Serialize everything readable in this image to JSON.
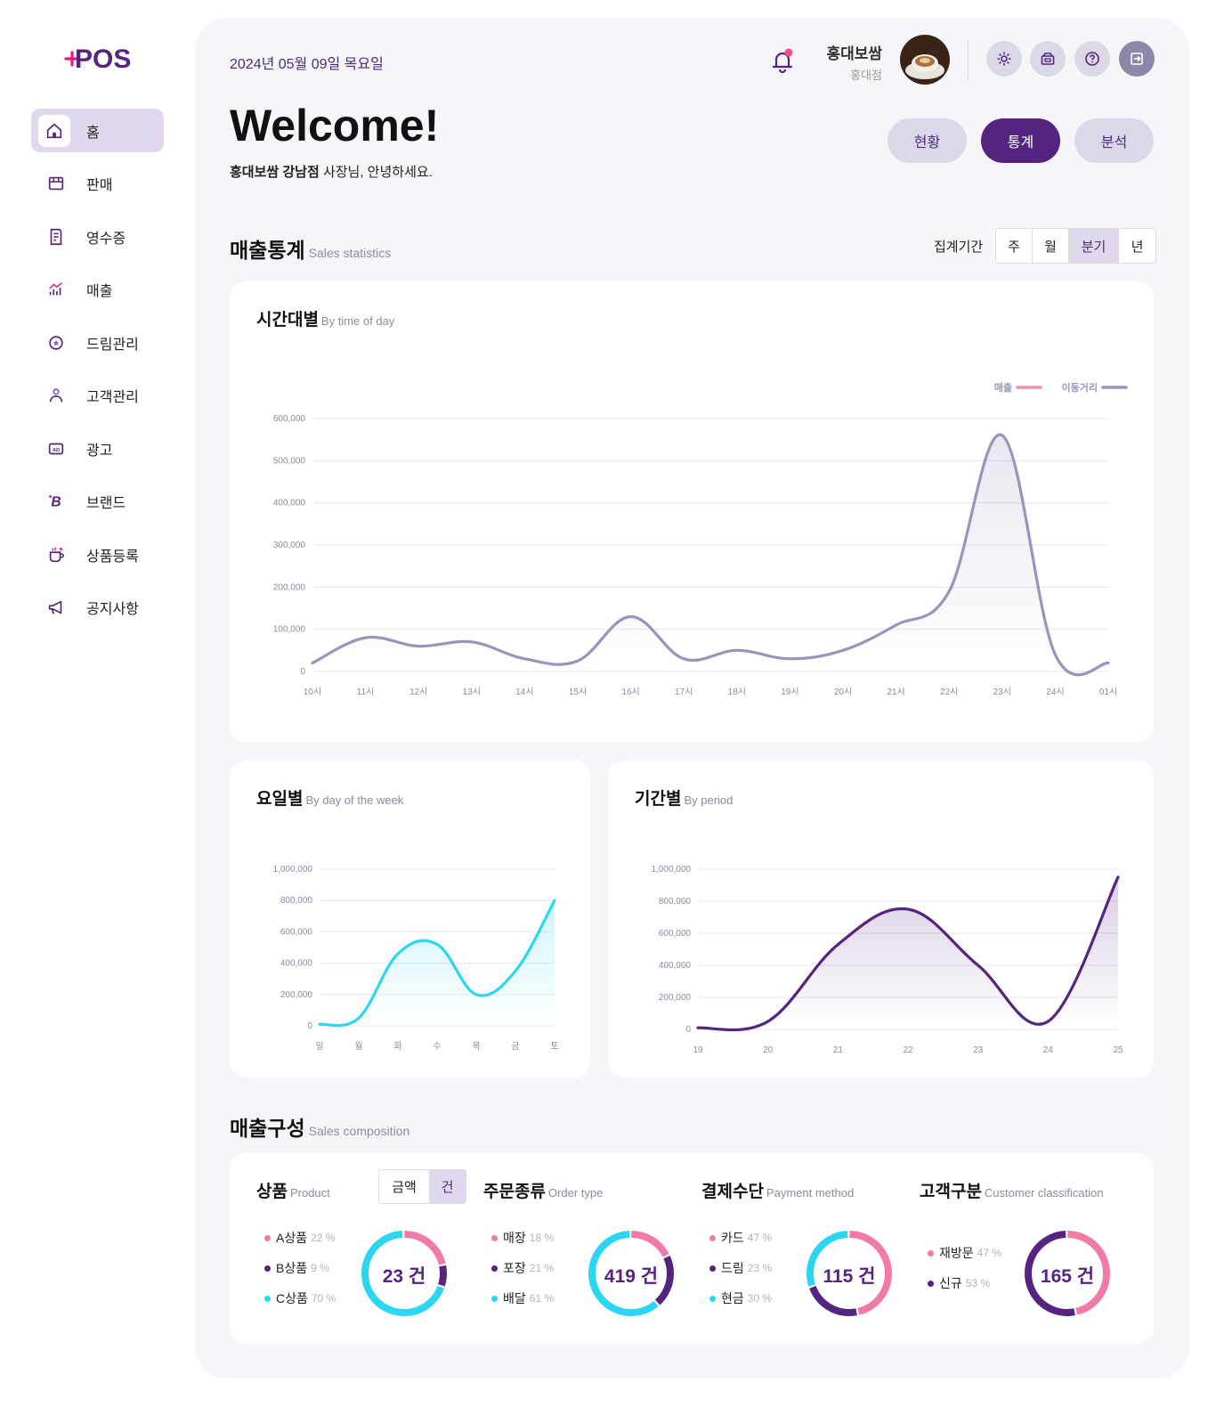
{
  "brand": {
    "logo_text": "POS"
  },
  "sidebar": {
    "items": [
      {
        "label": "홈",
        "icon": "home-icon",
        "active": true
      },
      {
        "label": "판매",
        "icon": "store-icon"
      },
      {
        "label": "영수증",
        "icon": "receipt-icon"
      },
      {
        "label": "매출",
        "icon": "sales-chart-icon"
      },
      {
        "label": "드림관리",
        "icon": "dream-icon"
      },
      {
        "label": "고객관리",
        "icon": "person-icon"
      },
      {
        "label": "광고",
        "icon": "ad-icon"
      },
      {
        "label": "브랜드",
        "icon": "brand-icon"
      },
      {
        "label": "상품등록",
        "icon": "cup-add-icon"
      },
      {
        "label": "공지사항",
        "icon": "megaphone-icon"
      }
    ]
  },
  "header": {
    "date": "2024년 05월 09일 목요일",
    "user_name": "홍대보쌈",
    "user_store": "홍대점"
  },
  "welcome": {
    "title": "Welcome!",
    "store_bold": "홍대보쌈 강남점",
    "greeting_rest": " 사장님, 안녕하세요."
  },
  "tabs": [
    {
      "label": "현황",
      "active": false
    },
    {
      "label": "통계",
      "active": true
    },
    {
      "label": "분석",
      "active": false
    }
  ],
  "sales_stats": {
    "title": "매출통계",
    "title_en": "Sales statistics",
    "period_label": "집계기간",
    "periods": [
      {
        "label": "주",
        "active": false
      },
      {
        "label": "월",
        "active": false
      },
      {
        "label": "분기",
        "active": true
      },
      {
        "label": "년",
        "active": false
      }
    ]
  },
  "time_card": {
    "title": "시간대별",
    "title_en": "By time of day"
  },
  "weekday_card": {
    "title": "요일별",
    "title_en": "By day of the week"
  },
  "period_card": {
    "title": "기간별",
    "title_en": "By period"
  },
  "chart_data": [
    {
      "type": "area",
      "x": [
        "10시",
        "11시",
        "12시",
        "13시",
        "14시",
        "15시",
        "16시",
        "17시",
        "18시",
        "19시",
        "20시",
        "21시",
        "22시",
        "23시",
        "24시",
        "01시"
      ],
      "series": [
        {
          "name": "이동거리",
          "values": [
            20000,
            80000,
            60000,
            70000,
            30000,
            25000,
            130000,
            30000,
            50000,
            30000,
            50000,
            110000,
            190000,
            560000,
            40000,
            20000
          ]
        }
      ],
      "legend": [
        "매출",
        "이동거리"
      ],
      "yticks": [
        "0",
        "100,000",
        "200,000",
        "300,000",
        "400,000",
        "500,000",
        "600,000"
      ],
      "ylim": [
        0,
        600000
      ],
      "legend_position": "top-right",
      "grid": true,
      "colors": {
        "매출": "#f28ab0",
        "이동거리": "#9a93bb"
      }
    },
    {
      "type": "area",
      "x": [
        "일",
        "월",
        "화",
        "수",
        "목",
        "금",
        "토"
      ],
      "series": [
        {
          "values": [
            10000,
            50000,
            460000,
            520000,
            200000,
            350000,
            800000
          ]
        }
      ],
      "yticks": [
        "0",
        "200,000",
        "400,000",
        "600,000",
        "800,000",
        "1,000,000"
      ],
      "ylim": [
        0,
        1000000
      ],
      "grid": true,
      "color": "#2bd6f3"
    },
    {
      "type": "area",
      "x": [
        "19",
        "20",
        "21",
        "22",
        "23",
        "24",
        "25"
      ],
      "series": [
        {
          "values": [
            10000,
            50000,
            530000,
            750000,
            400000,
            50000,
            950000
          ]
        }
      ],
      "yticks": [
        "0",
        "200,000",
        "400,000",
        "600,000",
        "800,000",
        "1,000,000"
      ],
      "ylim": [
        0,
        1000000
      ],
      "grid": true,
      "color": "#54247f"
    }
  ],
  "composition": {
    "title": "매출구성",
    "title_en": "Sales composition",
    "toggle": [
      {
        "label": "금액",
        "active": false
      },
      {
        "label": "건",
        "active": true
      }
    ],
    "blocks": [
      {
        "title": "상품",
        "title_en": "Product",
        "center": "23 건",
        "items": [
          {
            "label": "A상품",
            "pct": "22 %",
            "value": 22,
            "color": "#f27aa8"
          },
          {
            "label": "B상품",
            "pct": "9 %",
            "value": 9,
            "color": "#54247f"
          },
          {
            "label": "C상품",
            "pct": "70 %",
            "value": 70,
            "color": "#2bd6f3"
          }
        ]
      },
      {
        "title": "주문종류",
        "title_en": "Order type",
        "center": "419 건",
        "items": [
          {
            "label": "매장",
            "pct": "18 %",
            "value": 18,
            "color": "#f27aa8"
          },
          {
            "label": "포장",
            "pct": "21 %",
            "value": 21,
            "color": "#54247f"
          },
          {
            "label": "배달",
            "pct": "61 %",
            "value": 61,
            "color": "#2bd6f3"
          }
        ]
      },
      {
        "title": "결제수단",
        "title_en": "Payment method",
        "center": "115 건",
        "items": [
          {
            "label": "카드",
            "pct": "47 %",
            "value": 47,
            "color": "#f27aa8"
          },
          {
            "label": "드림",
            "pct": "23 %",
            "value": 23,
            "color": "#54247f"
          },
          {
            "label": "현금",
            "pct": "30 %",
            "value": 30,
            "color": "#2bd6f3"
          }
        ]
      },
      {
        "title": "고객구분",
        "title_en": "Customer classification",
        "center": "165 건",
        "items": [
          {
            "label": "재방문",
            "pct": "47 %",
            "value": 47,
            "color": "#f27aa8"
          },
          {
            "label": "신규",
            "pct": "53 %",
            "value": 53,
            "color": "#54247f"
          }
        ]
      }
    ]
  }
}
